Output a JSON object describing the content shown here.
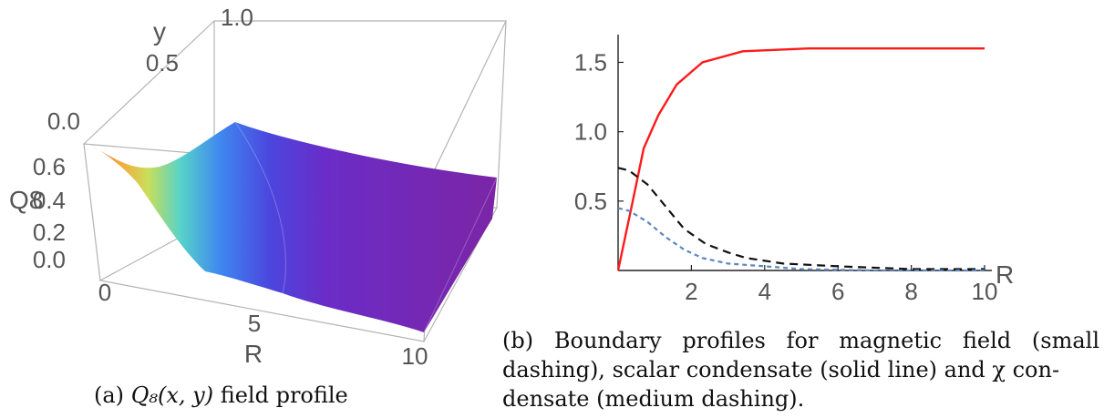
{
  "chart_data": [
    {
      "type": "surface3d",
      "caption_tag": "(a)",
      "caption_math": "Q₈(x, y)",
      "caption_rest": "field profile",
      "axes": {
        "x": {
          "label": "R",
          "ticks": [
            "0",
            "5",
            "10"
          ],
          "range": [
            0,
            10
          ]
        },
        "y": {
          "label": "y",
          "ticks": [
            "0.0",
            "0.5",
            "1.0"
          ],
          "range": [
            0,
            1
          ]
        },
        "z": {
          "label": "Q8",
          "ticks": [
            "0.0",
            "0.2",
            "0.4",
            "0.6"
          ],
          "range": [
            0,
            0.75
          ]
        }
      },
      "profile_at_y0": {
        "R": [
          0,
          0.5,
          1,
          2,
          3,
          4,
          6,
          8,
          10
        ],
        "value": [
          0.72,
          0.62,
          0.47,
          0.25,
          0.1,
          0.04,
          0.01,
          0.0,
          0.0
        ]
      },
      "profile_at_y1": {
        "R": [
          0,
          1,
          2,
          3,
          4,
          6,
          8,
          10
        ],
        "value": [
          0.68,
          0.57,
          0.36,
          0.2,
          0.1,
          0.03,
          0.01,
          0.0
        ]
      },
      "colormap": "rainbow"
    },
    {
      "type": "line",
      "caption_tag": "(b)",
      "caption_lines": [
        "Boundary profiles for magnetic field (small",
        "dashing), scalar condensate (solid line) and χ con-",
        "densate (medium dashing)."
      ],
      "xlabel": "R",
      "xticks": [
        "2",
        "4",
        "6",
        "8",
        "10"
      ],
      "yticks": [
        "0.5",
        "1.0",
        "1.5"
      ],
      "xlim": [
        0,
        10
      ],
      "ylim": [
        0,
        1.7
      ],
      "series": [
        {
          "style": "solid",
          "color": "#ff1a1a",
          "x": [
            0,
            0.4,
            0.7,
            1.1,
            1.6,
            2.3,
            3.4,
            5.2,
            10
          ],
          "y": [
            0,
            0.5,
            0.88,
            1.12,
            1.34,
            1.5,
            1.58,
            1.6,
            1.6
          ]
        },
        {
          "style": "medium-dash",
          "color": "#111111",
          "x": [
            0,
            0.3,
            0.8,
            1.3,
            1.8,
            2.4,
            3.0,
            3.5,
            4.5,
            6,
            8,
            10
          ],
          "y": [
            0.74,
            0.72,
            0.62,
            0.46,
            0.3,
            0.19,
            0.13,
            0.09,
            0.05,
            0.03,
            0.01,
            0.01
          ]
        },
        {
          "style": "small-dash",
          "color": "#5b86c0",
          "x": [
            0,
            0.3,
            0.8,
            1.3,
            1.8,
            2.3,
            3.0,
            4.0,
            5,
            7,
            10
          ],
          "y": [
            0.45,
            0.43,
            0.35,
            0.24,
            0.15,
            0.09,
            0.05,
            0.03,
            0.01,
            0.0,
            0.0
          ]
        }
      ]
    }
  ]
}
